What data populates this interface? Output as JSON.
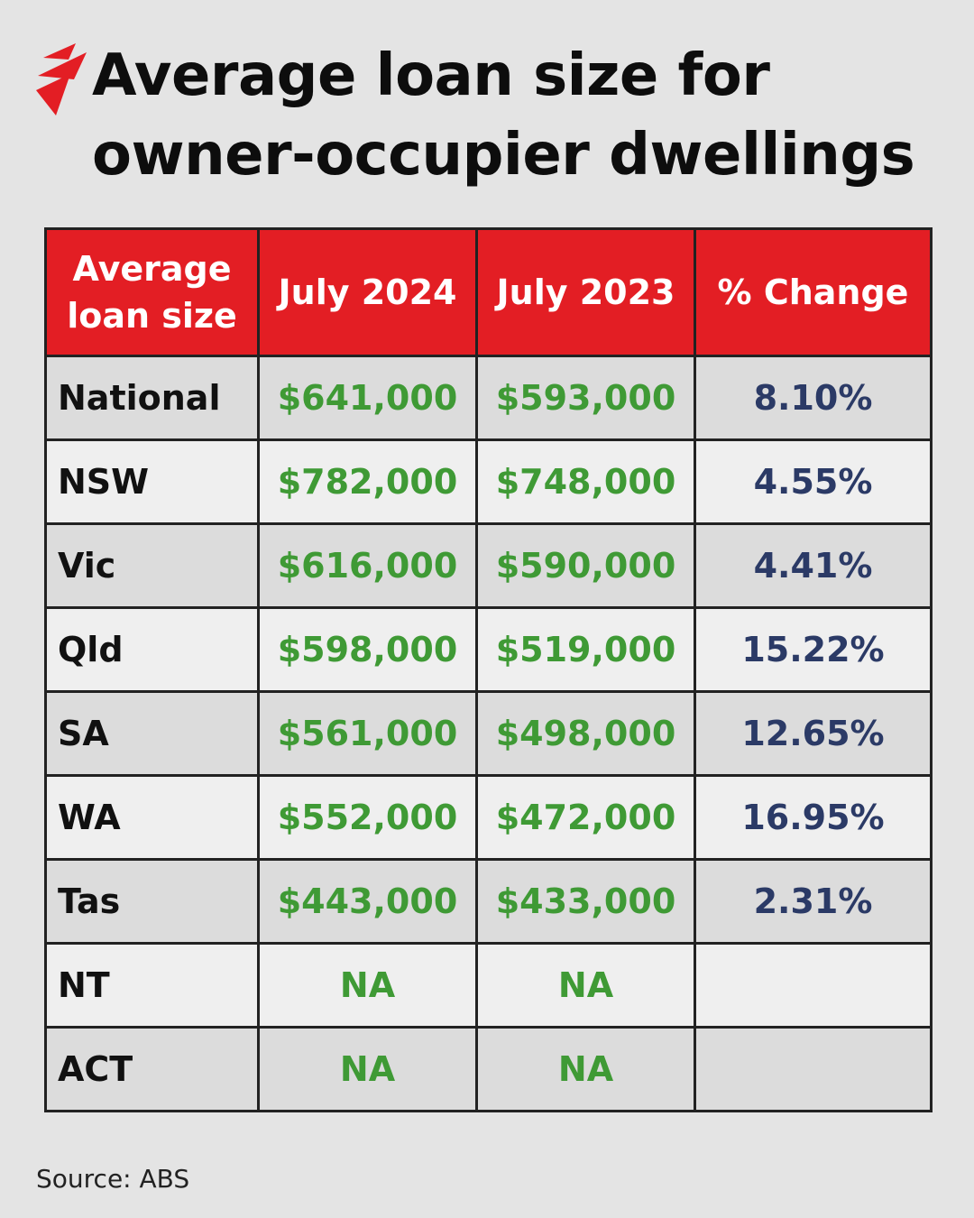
{
  "title_lines": [
    "Average loan size for",
    "owner-occupier dwellings"
  ],
  "colors": {
    "brand_red": "#e31e24",
    "value_green": "#3f9a35",
    "change_navy": "#2b3a66",
    "background": "#e4e4e4"
  },
  "logo_icon": "sbs-logo-icon",
  "chart_data": {
    "type": "table",
    "columns": [
      "Average loan size",
      "July 2024",
      "July 2023",
      "% Change"
    ],
    "rows": [
      {
        "region": "National",
        "july_2024": "$641,000",
        "july_2023": "$593,000",
        "change": "8.10%"
      },
      {
        "region": "NSW",
        "july_2024": "$782,000",
        "july_2023": "$748,000",
        "change": "4.55%"
      },
      {
        "region": "Vic",
        "july_2024": "$616,000",
        "july_2023": "$590,000",
        "change": "4.41%"
      },
      {
        "region": "Qld",
        "july_2024": "$598,000",
        "july_2023": "$519,000",
        "change": "15.22%"
      },
      {
        "region": "SA",
        "july_2024": "$561,000",
        "july_2023": "$498,000",
        "change": "12.65%"
      },
      {
        "region": "WA",
        "july_2024": "$552,000",
        "july_2023": "$472,000",
        "change": "16.95%"
      },
      {
        "region": "Tas",
        "july_2024": "$443,000",
        "july_2023": "$433,000",
        "change": "2.31%"
      },
      {
        "region": "NT",
        "july_2024": "NA",
        "july_2023": "NA",
        "change": ""
      },
      {
        "region": "ACT",
        "july_2024": "NA",
        "july_2023": "NA",
        "change": ""
      }
    ]
  },
  "source": "Source: ABS"
}
